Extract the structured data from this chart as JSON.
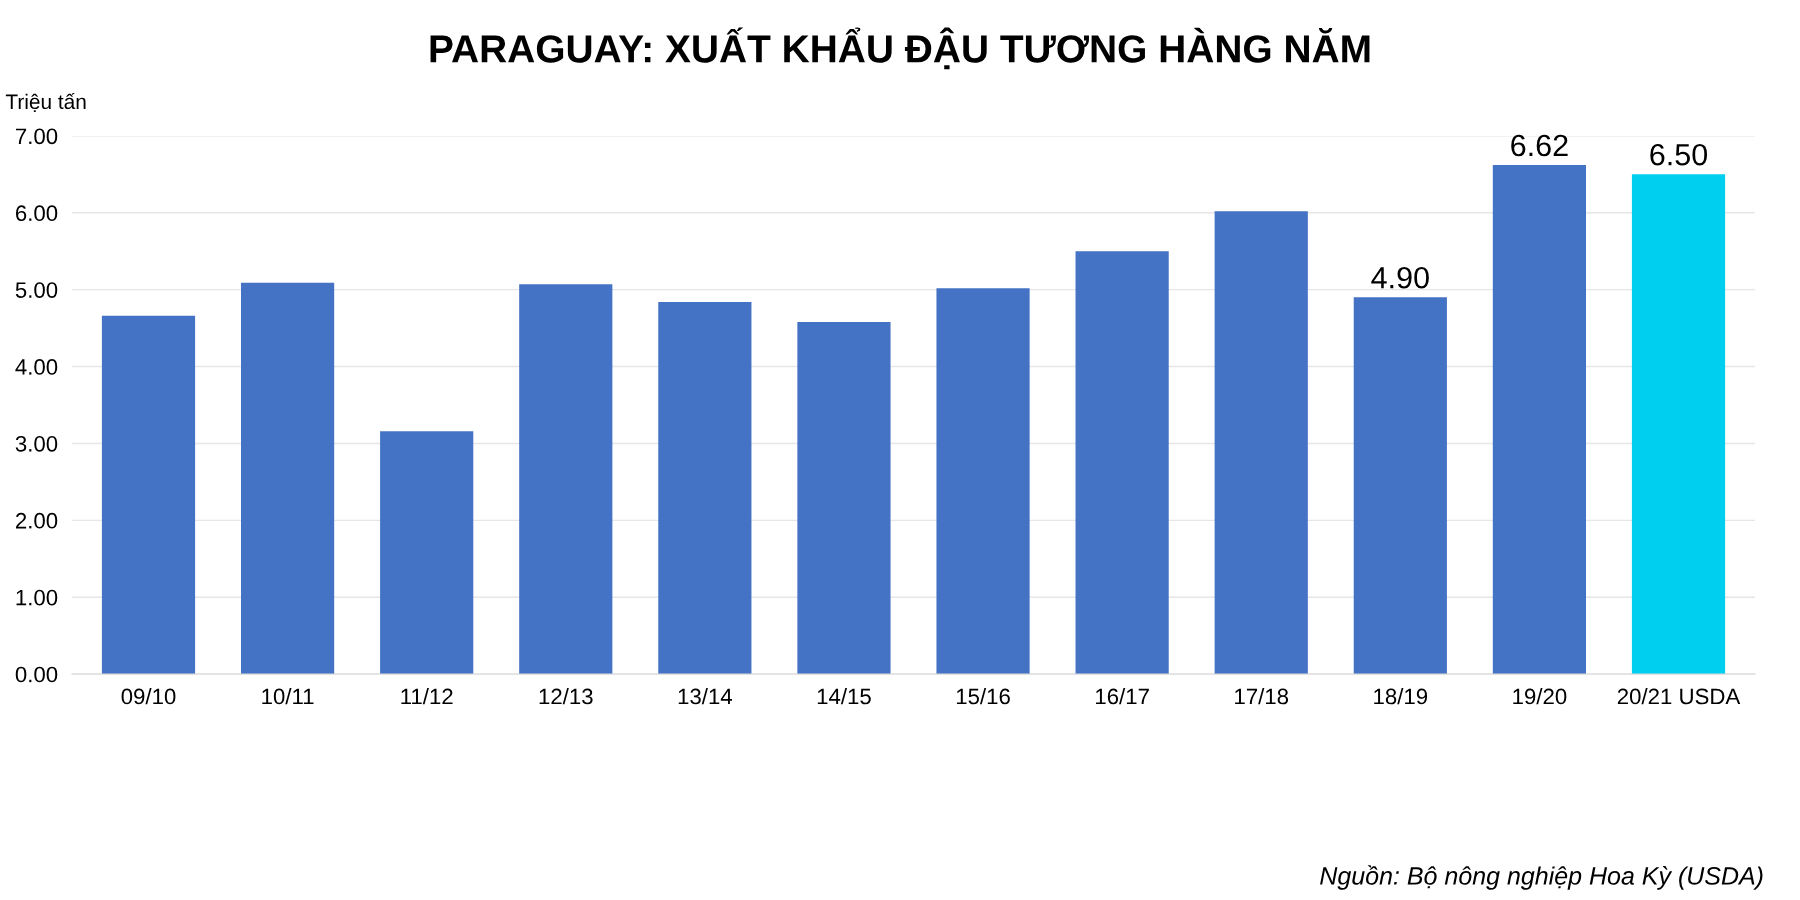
{
  "chart_data": {
    "type": "bar",
    "title": "PARAGUAY: XUẤT KHẨU ĐẬU TƯƠNG HÀNG NĂM",
    "ylabel": "Triệu tấn",
    "categories": [
      "09/10",
      "10/11",
      "11/12",
      "12/13",
      "13/14",
      "14/15",
      "15/16",
      "16/17",
      "17/18",
      "18/19",
      "19/20",
      "20/21 USDA"
    ],
    "values": [
      4.66,
      5.09,
      3.16,
      5.07,
      4.84,
      4.58,
      5.02,
      5.5,
      6.02,
      4.9,
      6.62,
      6.5
    ],
    "colors": [
      "#4472c4",
      "#4472c4",
      "#4472c4",
      "#4472c4",
      "#4472c4",
      "#4472c4",
      "#4472c4",
      "#4472c4",
      "#4472c4",
      "#4472c4",
      "#4472c4",
      "#00cfef"
    ],
    "value_labels": [
      null,
      null,
      null,
      null,
      null,
      null,
      null,
      null,
      null,
      "4.90",
      "6.62",
      "6.50"
    ],
    "ylim": [
      0,
      7
    ],
    "yticks": [
      {
        "value": 0,
        "label": "0.00"
      },
      {
        "value": 1,
        "label": "1.00"
      },
      {
        "value": 2,
        "label": "2.00"
      },
      {
        "value": 3,
        "label": "3.00"
      },
      {
        "value": 4,
        "label": "4.00"
      },
      {
        "value": 5,
        "label": "5.00"
      },
      {
        "value": 6,
        "label": "6.00"
      },
      {
        "value": 7,
        "label": "7.00"
      }
    ],
    "grid": "y",
    "annotations": [
      "Nguồn: Bộ nông nghiệp Hoa Kỳ (USDA)"
    ]
  }
}
